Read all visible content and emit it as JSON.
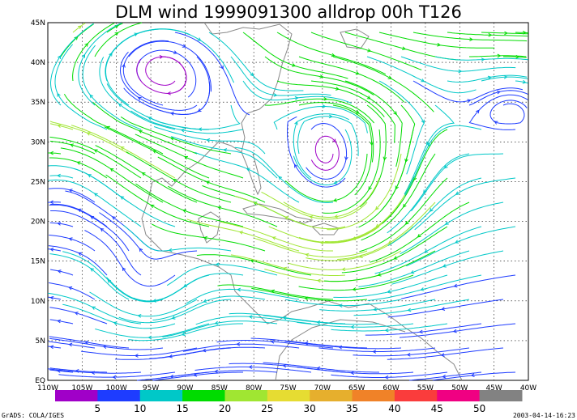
{
  "title": "DLM wind 1999091300 alldrop 00h T126",
  "lat_labels": [
    "45N",
    "40N",
    "35N",
    "30N",
    "25N",
    "20N",
    "15N",
    "10N",
    "5N",
    "EQ"
  ],
  "lon_labels": [
    "110W",
    "105W",
    "100W",
    "95W",
    "90W",
    "85W",
    "80W",
    "75W",
    "70W",
    "65W",
    "60W",
    "55W",
    "50W",
    "45W",
    "40W"
  ],
  "map_extent": {
    "lon_min": -110,
    "lon_max": -40,
    "lat_min": 0,
    "lat_max": 45
  },
  "colorbar": {
    "colors": [
      "#a000c8",
      "#1e3cff",
      "#00c8c8",
      "#00dc00",
      "#a0e632",
      "#e6dc32",
      "#e6af2d",
      "#f08228",
      "#fa3c3c",
      "#f00082",
      "#828282"
    ],
    "tick_labels": [
      "5",
      "10",
      "15",
      "20",
      "25",
      "30",
      "35",
      "40",
      "45",
      "50"
    ]
  },
  "footer": {
    "left": "GrADS: COLA/IGES",
    "right": "2003-04-14-16:23"
  }
}
